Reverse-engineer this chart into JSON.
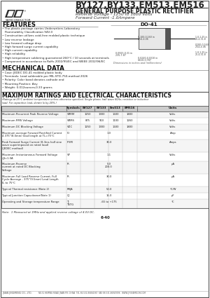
{
  "title_part": "BY127,BY133,EM513,EM516",
  "title_main": "GENERAL PURPOSE PLASTIC RECTIFIER",
  "title_sub1": "Reverse Voltage - 1250 to 1800 Volts",
  "title_sub2": "Forward Current -1.0Ampere",
  "logo_text": "SEMICONDUCTOR",
  "features_title": "FEATURES",
  "features": [
    "• The plastic package carries Underwriters Laboratory",
    "   Flammability Classification 94V-0",
    "• Construction utilizes void-free molded plastic technique",
    "• Low reverse leakage",
    "• Low forward voltage drop",
    "• High forward surge current capability",
    "• High current capability",
    "• High reliability",
    "• High temperature soldering guaranteed 260°C / 10 seconds at terminals",
    "• Component in accordance to RoHs 2002/95/EC and WEEE 2002/96/EC"
  ],
  "mech_title": "MECHANICAL DATA",
  "mech": [
    "• Case: JEDEC DO-41 molded plastic body",
    "• Terminals: Lead solderable per MIL-STD-750,method 2026",
    "• Polarity: Color band denotes cathode end",
    "• Mounting Position: Any",
    "• Weight: 0.012ounces,0.33 grams"
  ],
  "ratings_title": "MAXIMUM RATINGS AND ELECTRICAL CHARACTERISTICS",
  "ratings_note": "(Ratings at 25°C ambient temperature unless otherwise specified. Single phase, half wave 60Hz, resistive or inductive\nload. For capacitive load, derate Io by 20%.)",
  "package": "DO-41",
  "col_headers": [
    "",
    "Symbols",
    "BY127",
    "BY133",
    "Em513",
    "EM516",
    "Units"
  ],
  "note": "Note:  1 Measured at 1MHz and applied reverse voltage of 4.0V DC.",
  "page": "6-40",
  "company": "JINAN JINGMENG CO., LTD.",
  "address": "NO.51 HEIPING ROAD JINAN P.R. CHINA  TEL 86-531-86864367  FAX 86-531-86947096   WWW.JIFUSEMICON.COM",
  "bg_color": "#ffffff",
  "separator_color": "#888888",
  "table_bg_alt": "#efefef",
  "table_line_color": "#bbbbbb",
  "table_outer_color": "#666666"
}
